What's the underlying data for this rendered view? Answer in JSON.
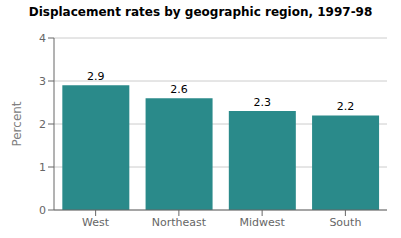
{
  "chart_data": {
    "type": "bar",
    "title": "Displacement rates by geographic region, 1997-98",
    "categories": [
      "West",
      "Northeast",
      "Midwest",
      "South"
    ],
    "values": [
      2.9,
      2.6,
      2.3,
      2.2
    ],
    "color": "#2a8a8a",
    "ylabel": "Percent",
    "ylim": [
      0,
      4
    ],
    "yticks": [
      0,
      1,
      2,
      3,
      4
    ],
    "grid": true,
    "data_labels": true
  }
}
